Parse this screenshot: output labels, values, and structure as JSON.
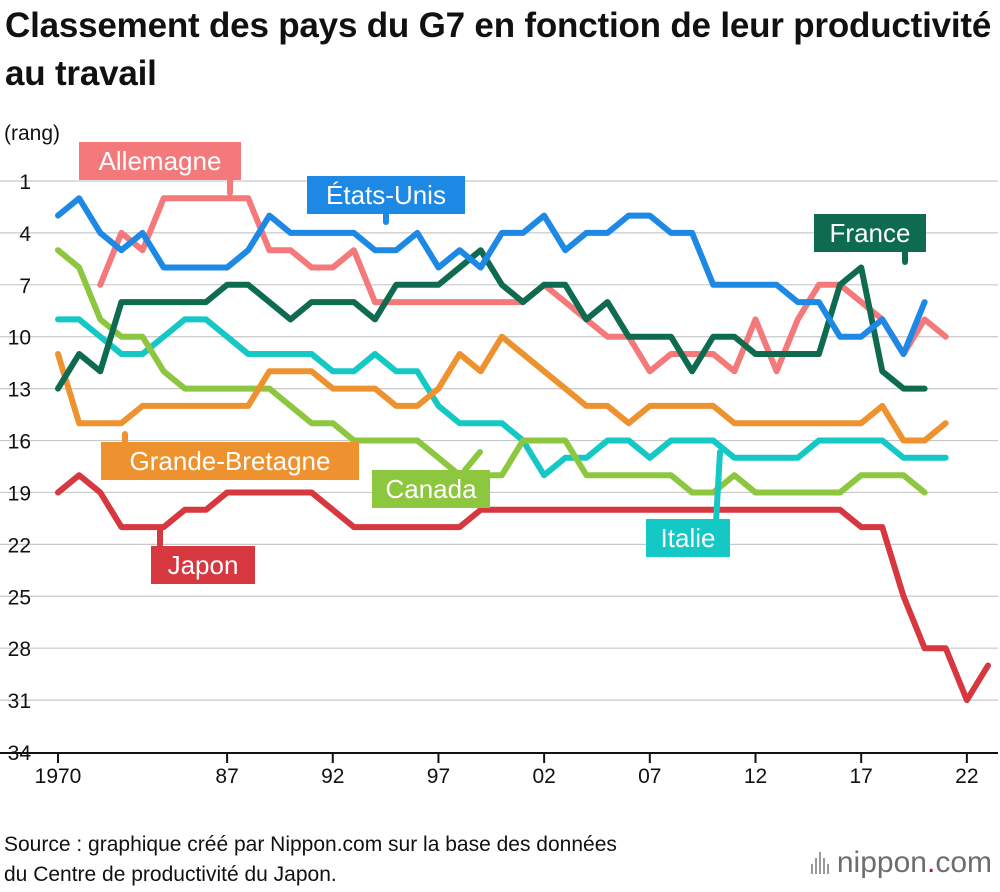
{
  "chart_data": {
    "type": "line",
    "title": "Classement des pays du G7 en fonction de leur productivité au travail",
    "ylabel": "(rang)",
    "xlabel": "",
    "ylim": [
      1,
      34
    ],
    "y_inverted": true,
    "y_ticks": [
      1,
      4,
      7,
      10,
      13,
      16,
      19,
      22,
      25,
      28,
      31,
      34
    ],
    "x_ticks": [
      "1970",
      "87",
      "92",
      "97",
      "02",
      "07",
      "12",
      "17",
      "22"
    ],
    "x_categories": [
      "1970",
      "1980",
      "1981",
      "1982",
      "1983",
      "1984",
      "1985",
      "1986",
      "1987",
      "1988",
      "1989",
      "1990",
      "1991",
      "1992",
      "1993",
      "1994",
      "1995",
      "1996",
      "1997",
      "1998",
      "1999",
      "2000",
      "2001",
      "2002",
      "2003",
      "2004",
      "2005",
      "2006",
      "2007",
      "2008",
      "2009",
      "2010",
      "2011",
      "2012",
      "2013",
      "2014",
      "2015",
      "2016",
      "2017",
      "2018",
      "2019",
      "2020",
      "2021",
      "2022",
      "2023"
    ],
    "grid": true,
    "series": [
      {
        "name": "Allemagne",
        "color": "#f4797b",
        "start_index": 2,
        "values": [
          7,
          4,
          5,
          2,
          2,
          2,
          2,
          2,
          5,
          5,
          6,
          6,
          5,
          8,
          8,
          8,
          8,
          8,
          8,
          8,
          8,
          7,
          8,
          9,
          10,
          10,
          12,
          11,
          11,
          11,
          12,
          9,
          12,
          9,
          7,
          7,
          8,
          9,
          11,
          9,
          10
        ]
      },
      {
        "name": "États-Unis",
        "color": "#1e88e5",
        "start_index": 0,
        "values": [
          3,
          2,
          4,
          5,
          4,
          6,
          6,
          6,
          6,
          5,
          3,
          4,
          4,
          4,
          4,
          5,
          5,
          4,
          6,
          5,
          6,
          4,
          4,
          3,
          5,
          4,
          4,
          3,
          3,
          4,
          4,
          7,
          7,
          7,
          7,
          8,
          8,
          10,
          10,
          9,
          11,
          8
        ]
      },
      {
        "name": "France",
        "color": "#0f6b4f",
        "start_index": 0,
        "values": [
          13,
          11,
          12,
          8,
          8,
          8,
          8,
          8,
          7,
          7,
          8,
          9,
          8,
          8,
          8,
          9,
          7,
          7,
          7,
          6,
          5,
          7,
          8,
          7,
          7,
          9,
          8,
          10,
          10,
          10,
          12,
          10,
          10,
          11,
          11,
          11,
          11,
          7,
          6,
          12,
          13,
          13
        ]
      },
      {
        "name": "Grande-Bretagne",
        "color": "#ee9230",
        "start_index": 0,
        "values": [
          11,
          15,
          15,
          15,
          14,
          14,
          14,
          14,
          14,
          14,
          12,
          12,
          12,
          13,
          13,
          13,
          14,
          14,
          13,
          11,
          12,
          10,
          11,
          12,
          13,
          14,
          14,
          15,
          14,
          14,
          14,
          14,
          15,
          15,
          15,
          15,
          15,
          15,
          15,
          14,
          16,
          16,
          15
        ]
      },
      {
        "name": "Canada",
        "color": "#8dc63f",
        "start_index": 0,
        "values": [
          5,
          6,
          9,
          10,
          10,
          12,
          13,
          13,
          13,
          13,
          13,
          14,
          15,
          15,
          16,
          16,
          16,
          16,
          17,
          18,
          18,
          18,
          16,
          16,
          16,
          18,
          18,
          18,
          18,
          18,
          19,
          19,
          18,
          19,
          19,
          19,
          19,
          19,
          18,
          18,
          18,
          19
        ]
      },
      {
        "name": "Italie",
        "color": "#13c8c5",
        "start_index": 0,
        "values": [
          9,
          9,
          10,
          11,
          11,
          10,
          9,
          9,
          10,
          11,
          11,
          11,
          11,
          12,
          12,
          11,
          12,
          12,
          14,
          15,
          15,
          15,
          16,
          18,
          17,
          17,
          16,
          16,
          17,
          16,
          16,
          16,
          17,
          17,
          17,
          17,
          16,
          16,
          16,
          16,
          17,
          17,
          17
        ]
      },
      {
        "name": "Japon",
        "color": "#d7373e",
        "start_index": 0,
        "values": [
          19,
          18,
          19,
          21,
          21,
          21,
          20,
          20,
          19,
          19,
          19,
          19,
          19,
          20,
          21,
          21,
          21,
          21,
          21,
          21,
          20,
          20,
          20,
          20,
          20,
          20,
          20,
          20,
          20,
          20,
          20,
          20,
          20,
          20,
          20,
          20,
          20,
          20,
          21,
          21,
          25,
          28,
          28,
          31,
          29
        ]
      }
    ]
  },
  "source": {
    "line1": "Source : graphique créé par Nippon.com sur la base des données",
    "line2": "du Centre de productivité du Japon."
  },
  "logo": {
    "name": "nippon",
    "dot": ".",
    "tld": "com"
  }
}
